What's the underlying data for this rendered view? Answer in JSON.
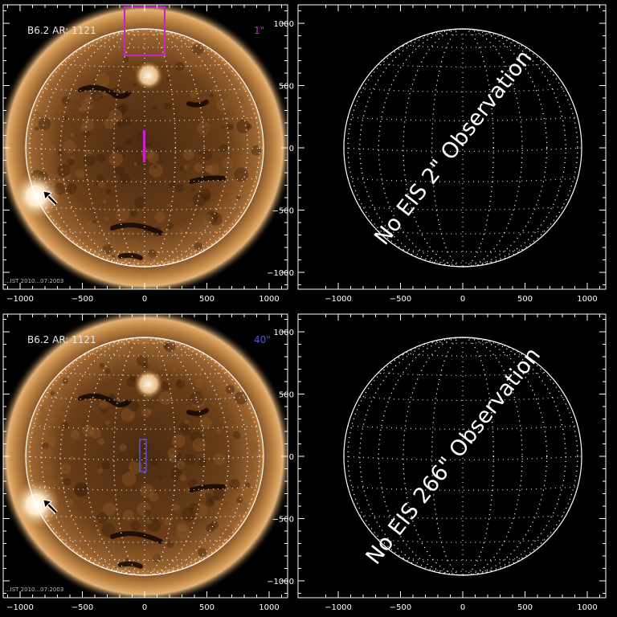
{
  "panels": [
    {
      "id": "tl",
      "image_label": "B6.2 AR: 1121",
      "slit_label": "1\"",
      "slit_color": "#cc22cc",
      "has_image": true,
      "footer_text": "...IST 2010...07:2003"
    },
    {
      "id": "tr",
      "has_image": false,
      "message": "No EIS 2\" Observation"
    },
    {
      "id": "bl",
      "image_label": "B6.2 AR: 1121",
      "slit_label": "40\"",
      "slit_color": "#5555dd",
      "has_image": true,
      "footer_text": "...IST 2010...07:2003"
    },
    {
      "id": "br",
      "has_image": false,
      "message": "No EIS 266\" Observation"
    }
  ],
  "axis": {
    "x_ticks": [
      "−1000",
      "−500",
      "0",
      "500",
      "1000"
    ],
    "y_ticks": [
      "1000",
      "500",
      "0",
      "−500",
      "−1000"
    ]
  },
  "colors": {
    "background": "#000000",
    "axis": "#ffffff",
    "sun_core": "#5a3414",
    "corona": "#d09a55",
    "limb": "#ffffff"
  }
}
